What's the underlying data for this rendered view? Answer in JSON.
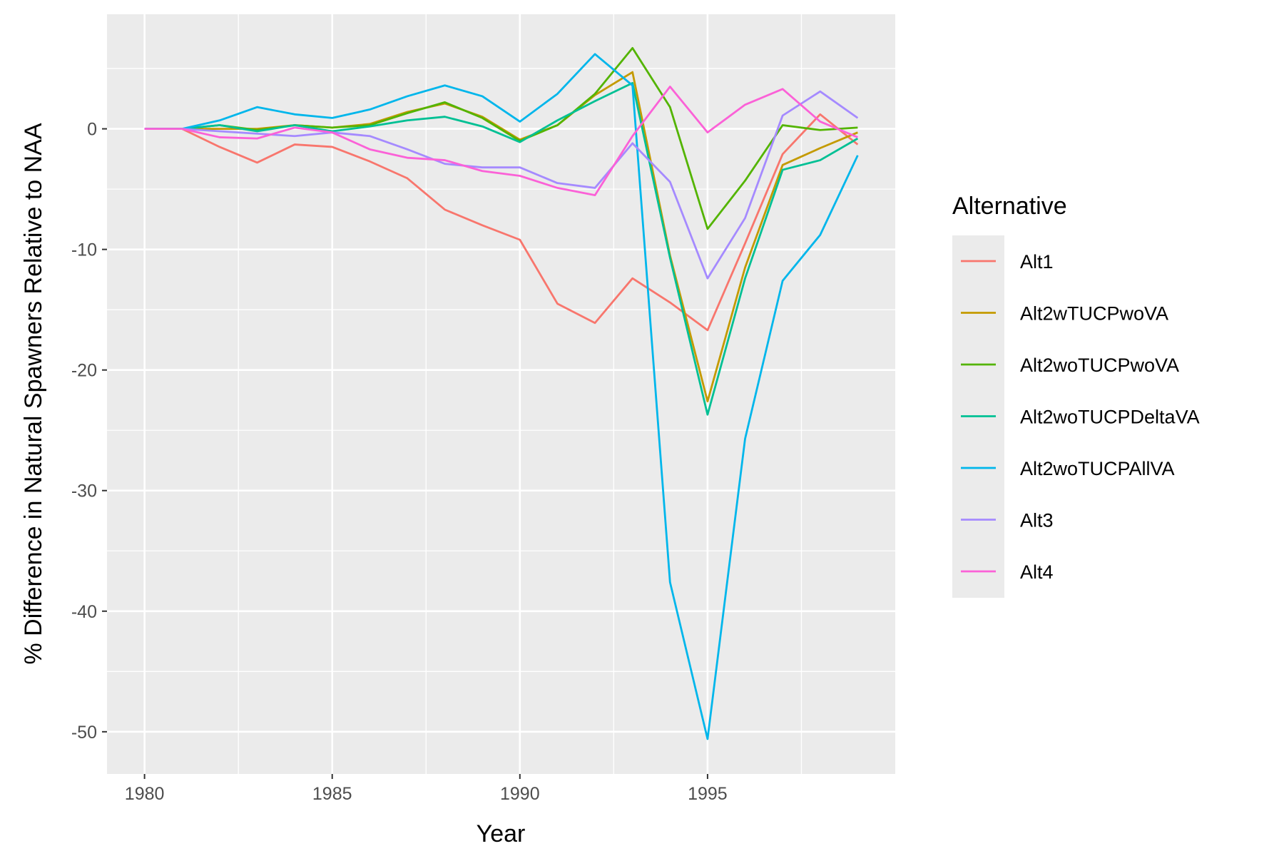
{
  "chart_data": {
    "type": "line",
    "title": "",
    "xlabel": "Year",
    "ylabel": "% Difference in Natural Spawners Relative to NAA",
    "xlim": [
      1979.0,
      2000.0
    ],
    "ylim": [
      -53.5,
      9.5
    ],
    "x_ticks": [
      1980,
      1985,
      1990,
      1995
    ],
    "y_ticks": [
      0,
      -10,
      -20,
      -30,
      -40,
      -50
    ],
    "grid": true,
    "legend_position": "right",
    "legend_title": "Alternative",
    "x": [
      1980,
      1981,
      1982,
      1983,
      1984,
      1985,
      1986,
      1987,
      1988,
      1989,
      1990,
      1991,
      1992,
      1993,
      1994,
      1995,
      1996,
      1997,
      1998,
      1999
    ],
    "series": [
      {
        "name": "Alt1",
        "color": "#F8766D",
        "values": [
          0,
          0,
          -1.5,
          -2.8,
          -1.3,
          -1.5,
          -2.7,
          -4.1,
          -6.7,
          -8,
          -9.2,
          -14.5,
          -16.1,
          -12.4,
          -14.4,
          -16.7,
          -9.5,
          -2.1,
          1.2,
          -1.3
        ]
      },
      {
        "name": "Alt2wTUCPwoVA",
        "color": "#C49A00",
        "values": [
          0,
          0,
          0,
          0,
          0.3,
          0.1,
          0.4,
          1.4,
          2.1,
          1.0,
          -0.9,
          0.3,
          2.8,
          4.7,
          -10.5,
          -22.6,
          -11.5,
          -3.0,
          -1.6,
          -0.3
        ]
      },
      {
        "name": "Alt2woTUCPwoVA",
        "color": "#53B400",
        "values": [
          0,
          0,
          0.3,
          -0.1,
          0.3,
          0.1,
          0.3,
          1.3,
          2.2,
          0.9,
          -1.0,
          0.3,
          2.9,
          6.7,
          1.8,
          -8.3,
          -4.3,
          0.3,
          -0.1,
          0.1
        ]
      },
      {
        "name": "Alt2woTUCPDeltaVA",
        "color": "#00C094",
        "values": [
          0,
          0,
          0.3,
          -0.2,
          0.3,
          -0.2,
          0.2,
          0.7,
          1.0,
          0.2,
          -1.1,
          0.7,
          2.3,
          3.8,
          -10.7,
          -23.7,
          -12.4,
          -3.4,
          -2.6,
          -0.8
        ]
      },
      {
        "name": "Alt2woTUCPAllVA",
        "color": "#00B6EB",
        "values": [
          0,
          0,
          0.7,
          1.8,
          1.2,
          0.9,
          1.6,
          2.7,
          3.6,
          2.7,
          0.6,
          2.9,
          6.2,
          3.6,
          -37.6,
          -50.6,
          -25.7,
          -12.6,
          -8.8,
          -2.2
        ]
      },
      {
        "name": "Alt3",
        "color": "#A58AFF",
        "values": [
          0,
          0,
          -0.2,
          -0.4,
          -0.6,
          -0.3,
          -0.6,
          -1.7,
          -2.9,
          -3.2,
          -3.2,
          -4.5,
          -4.9,
          -1.2,
          -4.4,
          -12.4,
          -7.4,
          1.1,
          3.1,
          0.9
        ]
      },
      {
        "name": "Alt4",
        "color": "#FB61D7",
        "values": [
          0,
          0,
          -0.7,
          -0.8,
          0.1,
          -0.3,
          -1.7,
          -2.4,
          -2.6,
          -3.5,
          -3.9,
          -4.9,
          -5.5,
          -0.6,
          3.5,
          -0.3,
          2.0,
          3.3,
          0.6,
          -0.7
        ]
      }
    ]
  }
}
